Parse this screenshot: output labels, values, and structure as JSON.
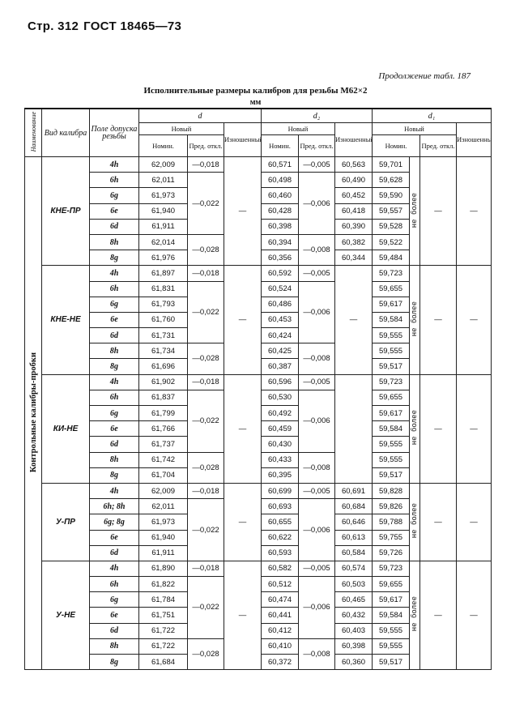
{
  "page_header": {
    "page": "Стр. 312",
    "standard": "ГОСТ 18465—73"
  },
  "continuation": "Продолжение табл. 187",
  "table_title": "Исполнительные размеры калибров для резьбы М62×2",
  "unit": "мм",
  "headers": {
    "name": "Наименование",
    "gauge_type": "Вид калибра",
    "tolerance_field": "Поле допуска резьбы",
    "d": "d",
    "d2": "d₂",
    "d1": "d₁",
    "new": "Новый",
    "worn": "Изношенный",
    "nominal": "Номин.",
    "deviation": "Пред. откл."
  },
  "name_value": "Контрольные калибры-пробки",
  "d1_limit": "не более",
  "dash": "—",
  "groups": [
    {
      "gauge": "КНЕ-ПР",
      "d_worn": "—",
      "d2_worn_merged": null,
      "d1_dev": "—",
      "d1_worn": "—",
      "d_dev": [
        {
          "value": "—0,018",
          "span": 1
        },
        {
          "value": "—0,022",
          "span": 4
        },
        {
          "value": "—0,028",
          "span": 2
        }
      ],
      "d2_dev": [
        {
          "value": "—0,005",
          "span": 1
        },
        {
          "value": "—0,006",
          "span": 4
        },
        {
          "value": "—0,008",
          "span": 2
        }
      ],
      "rows": [
        {
          "field": "4h",
          "d_nom": "62,009",
          "d2_nom": "60,571",
          "d2_worn": "60,563",
          "d1_nom": "59,701"
        },
        {
          "field": "6h",
          "d_nom": "62,011",
          "d2_nom": "60,498",
          "d2_worn": "60,490",
          "d1_nom": "59,628"
        },
        {
          "field": "6g",
          "d_nom": "61,973",
          "d2_nom": "60,460",
          "d2_worn": "60,452",
          "d1_nom": "59,590"
        },
        {
          "field": "6e",
          "d_nom": "61,940",
          "d2_nom": "60,428",
          "d2_worn": "60,418",
          "d1_nom": "59,557"
        },
        {
          "field": "6d",
          "d_nom": "61,911",
          "d2_nom": "60,398",
          "d2_worn": "60,390",
          "d1_nom": "59,528"
        },
        {
          "field": "8h",
          "d_nom": "62,014",
          "d2_nom": "60,394",
          "d2_worn": "60,382",
          "d1_nom": "59,522"
        },
        {
          "field": "8g",
          "d_nom": "61,976",
          "d2_nom": "60,356",
          "d2_worn": "60,344",
          "d1_nom": "59,484"
        }
      ]
    },
    {
      "gauge": "КНЕ-НЕ",
      "d_worn": "—",
      "d2_worn_merged": "—",
      "d1_dev": "—",
      "d1_worn": "—",
      "d_dev": [
        {
          "value": "—0,018",
          "span": 1
        },
        {
          "value": "—0,022",
          "span": 4
        },
        {
          "value": "—0,028",
          "span": 2
        }
      ],
      "d2_dev": [
        {
          "value": "—0,005",
          "span": 1
        },
        {
          "value": "—0,006",
          "span": 4
        },
        {
          "value": "—0,008",
          "span": 2
        }
      ],
      "rows": [
        {
          "field": "4h",
          "d_nom": "61,897",
          "d2_nom": "60,592",
          "d1_nom": "59,723"
        },
        {
          "field": "6h",
          "d_nom": "61,831",
          "d2_nom": "60,524",
          "d1_nom": "59,655"
        },
        {
          "field": "6g",
          "d_nom": "61,793",
          "d2_nom": "60,486",
          "d1_nom": "59,617"
        },
        {
          "field": "6e",
          "d_nom": "61,760",
          "d2_nom": "60,453",
          "d1_nom": "59,584"
        },
        {
          "field": "6d",
          "d_nom": "61,731",
          "d2_nom": "60,424",
          "d1_nom": "59,555"
        },
        {
          "field": "8h",
          "d_nom": "61,734",
          "d2_nom": "60,425",
          "d1_nom": "59,555"
        },
        {
          "field": "8g",
          "d_nom": "61,696",
          "d2_nom": "60,387",
          "d1_nom": "59,517"
        }
      ]
    },
    {
      "gauge": "КИ-НЕ",
      "d_worn": "—",
      "d2_worn_merged": "",
      "d1_dev": "—",
      "d1_worn": "—",
      "d_dev": [
        {
          "value": "—0,018",
          "span": 1
        },
        {
          "value": "—0,022",
          "span": 4
        },
        {
          "value": "—0,028",
          "span": 2
        }
      ],
      "d2_dev": [
        {
          "value": "—0,005",
          "span": 1
        },
        {
          "value": "—0,006",
          "span": 4
        },
        {
          "value": "—0,008",
          "span": 2
        }
      ],
      "rows": [
        {
          "field": "4h",
          "d_nom": "61,902",
          "d2_nom": "60,596",
          "d1_nom": "59,723"
        },
        {
          "field": "6h",
          "d_nom": "61,837",
          "d2_nom": "60,530",
          "d1_nom": "59,655"
        },
        {
          "field": "6g",
          "d_nom": "61,799",
          "d2_nom": "60,492",
          "d1_nom": "59,617"
        },
        {
          "field": "6e",
          "d_nom": "61,766",
          "d2_nom": "60,459",
          "d1_nom": "59,584"
        },
        {
          "field": "6d",
          "d_nom": "61,737",
          "d2_nom": "60,430",
          "d1_nom": "59,555"
        },
        {
          "field": "8h",
          "d_nom": "61,742",
          "d2_nom": "60,433",
          "d1_nom": "59,555"
        },
        {
          "field": "8g",
          "d_nom": "61,704",
          "d2_nom": "60,395",
          "d1_nom": "59,517"
        }
      ]
    },
    {
      "gauge": "У-ПР",
      "d_worn": "—",
      "d2_worn_merged": null,
      "d1_dev": "—",
      "d1_worn": "—",
      "d_dev": [
        {
          "value": "—0,018",
          "span": 1
        },
        {
          "value": "—0,022",
          "span": 4
        }
      ],
      "d2_dev": [
        {
          "value": "—0,005",
          "span": 1
        },
        {
          "value": "—0,006",
          "span": 4
        }
      ],
      "rows": [
        {
          "field": "4h",
          "d_nom": "62,009",
          "d2_nom": "60,699",
          "d2_worn": "60,691",
          "d1_nom": "59,828"
        },
        {
          "field": "6h; 8h",
          "d_nom": "62,011",
          "d2_nom": "60,693",
          "d2_worn": "60,684",
          "d1_nom": "59,826"
        },
        {
          "field": "6g; 8g",
          "d_nom": "61,973",
          "d2_nom": "60,655",
          "d2_worn": "60,646",
          "d1_nom": "59,788"
        },
        {
          "field": "6e",
          "d_nom": "61,940",
          "d2_nom": "60,622",
          "d2_worn": "60,613",
          "d1_nom": "59,755"
        },
        {
          "field": "6d",
          "d_nom": "61,911",
          "d2_nom": "60,593",
          "d2_worn": "60,584",
          "d1_nom": "59,726"
        }
      ]
    },
    {
      "gauge": "У-НЕ",
      "d_worn": "—",
      "d2_worn_merged": null,
      "d1_dev": "—",
      "d1_worn": "—",
      "d_dev": [
        {
          "value": "—0,018",
          "span": 1
        },
        {
          "value": "—0,022",
          "span": 4
        },
        {
          "value": "—0,028",
          "span": 2
        }
      ],
      "d2_dev": [
        {
          "value": "—0,005",
          "span": 1
        },
        {
          "value": "—0,006",
          "span": 4
        },
        {
          "value": "—0,008",
          "span": 2
        }
      ],
      "rows": [
        {
          "field": "4h",
          "d_nom": "61,890",
          "d2_nom": "60,582",
          "d2_worn": "60,574",
          "d1_nom": "59,723"
        },
        {
          "field": "6h",
          "d_nom": "61,822",
          "d2_nom": "60,512",
          "d2_worn": "60,503",
          "d1_nom": "59,655"
        },
        {
          "field": "6g",
          "d_nom": "61,784",
          "d2_nom": "60,474",
          "d2_worn": "60,465",
          "d1_nom": "59,617"
        },
        {
          "field": "6e",
          "d_nom": "61,751",
          "d2_nom": "60,441",
          "d2_worn": "60,432",
          "d1_nom": "59,584"
        },
        {
          "field": "6d",
          "d_nom": "61,722",
          "d2_nom": "60,412",
          "d2_worn": "60,403",
          "d1_nom": "59,555"
        },
        {
          "field": "8h",
          "d_nom": "61,722",
          "d2_nom": "60,410",
          "d2_worn": "60,398",
          "d1_nom": "59,555"
        },
        {
          "field": "8g",
          "d_nom": "61,684",
          "d2_nom": "60,372",
          "d2_worn": "60,360",
          "d1_nom": "59,517"
        }
      ]
    }
  ]
}
